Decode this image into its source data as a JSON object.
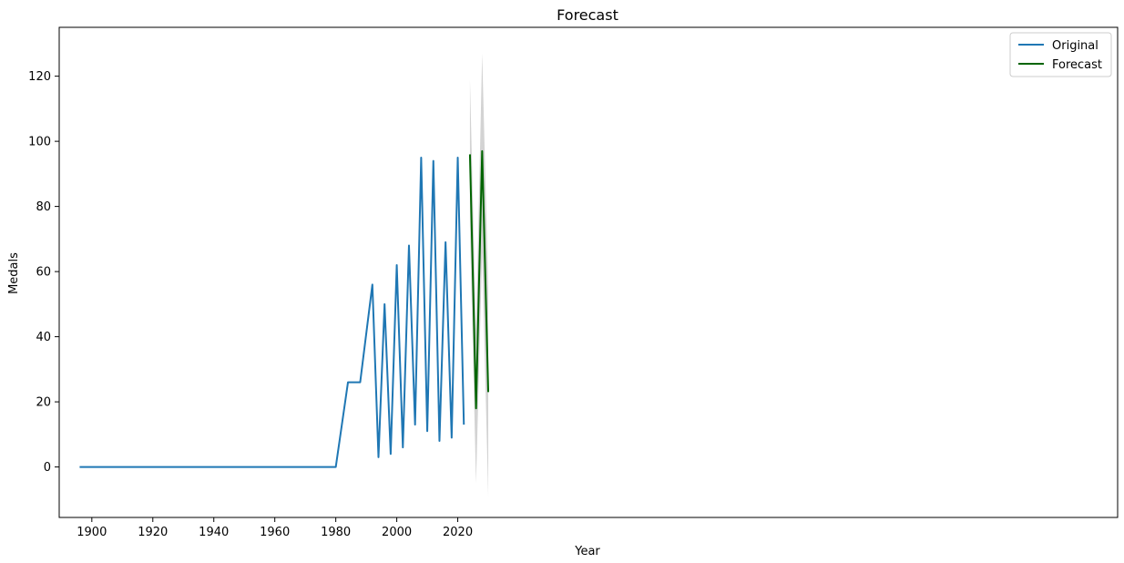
{
  "chart_data": {
    "type": "line",
    "title": "Forecast",
    "xlabel": "Year",
    "ylabel": "Medals",
    "xlim": [
      1889.3,
      2236.4
    ],
    "ylim": [
      -15.5,
      135.0
    ],
    "xticks": [
      1900,
      1920,
      1940,
      1960,
      1980,
      2000,
      2020
    ],
    "yticks": [
      0,
      20,
      40,
      60,
      80,
      100,
      120
    ],
    "grid": false,
    "legend_position": "top-right",
    "series": [
      {
        "name": "Original",
        "color": "#1f77b4",
        "x": [
          1896,
          1900,
          1904,
          1908,
          1912,
          1920,
          1924,
          1928,
          1932,
          1936,
          1948,
          1952,
          1956,
          1960,
          1964,
          1968,
          1972,
          1976,
          1980,
          1984,
          1988,
          1992,
          1994,
          1996,
          1998,
          2000,
          2002,
          2004,
          2006,
          2008,
          2010,
          2012,
          2014,
          2016,
          2018,
          2020,
          2022
        ],
        "y": [
          0,
          0,
          0,
          0,
          0,
          0,
          0,
          0,
          0,
          0,
          0,
          0,
          0,
          0,
          0,
          0,
          0,
          0,
          0,
          26,
          26,
          56,
          3,
          50,
          4,
          62,
          6,
          68,
          13,
          95,
          11,
          94,
          8,
          69,
          9,
          95,
          13
        ]
      },
      {
        "name": "Forecast",
        "color": "#006400",
        "x": [
          2024,
          2026,
          2028,
          2030
        ],
        "y": [
          96,
          18,
          97,
          23
        ],
        "ci_lower": [
          74,
          -5,
          66,
          -9
        ],
        "ci_upper": [
          119,
          42,
          127,
          55
        ],
        "ci_color": "#c8c8c8"
      }
    ]
  }
}
